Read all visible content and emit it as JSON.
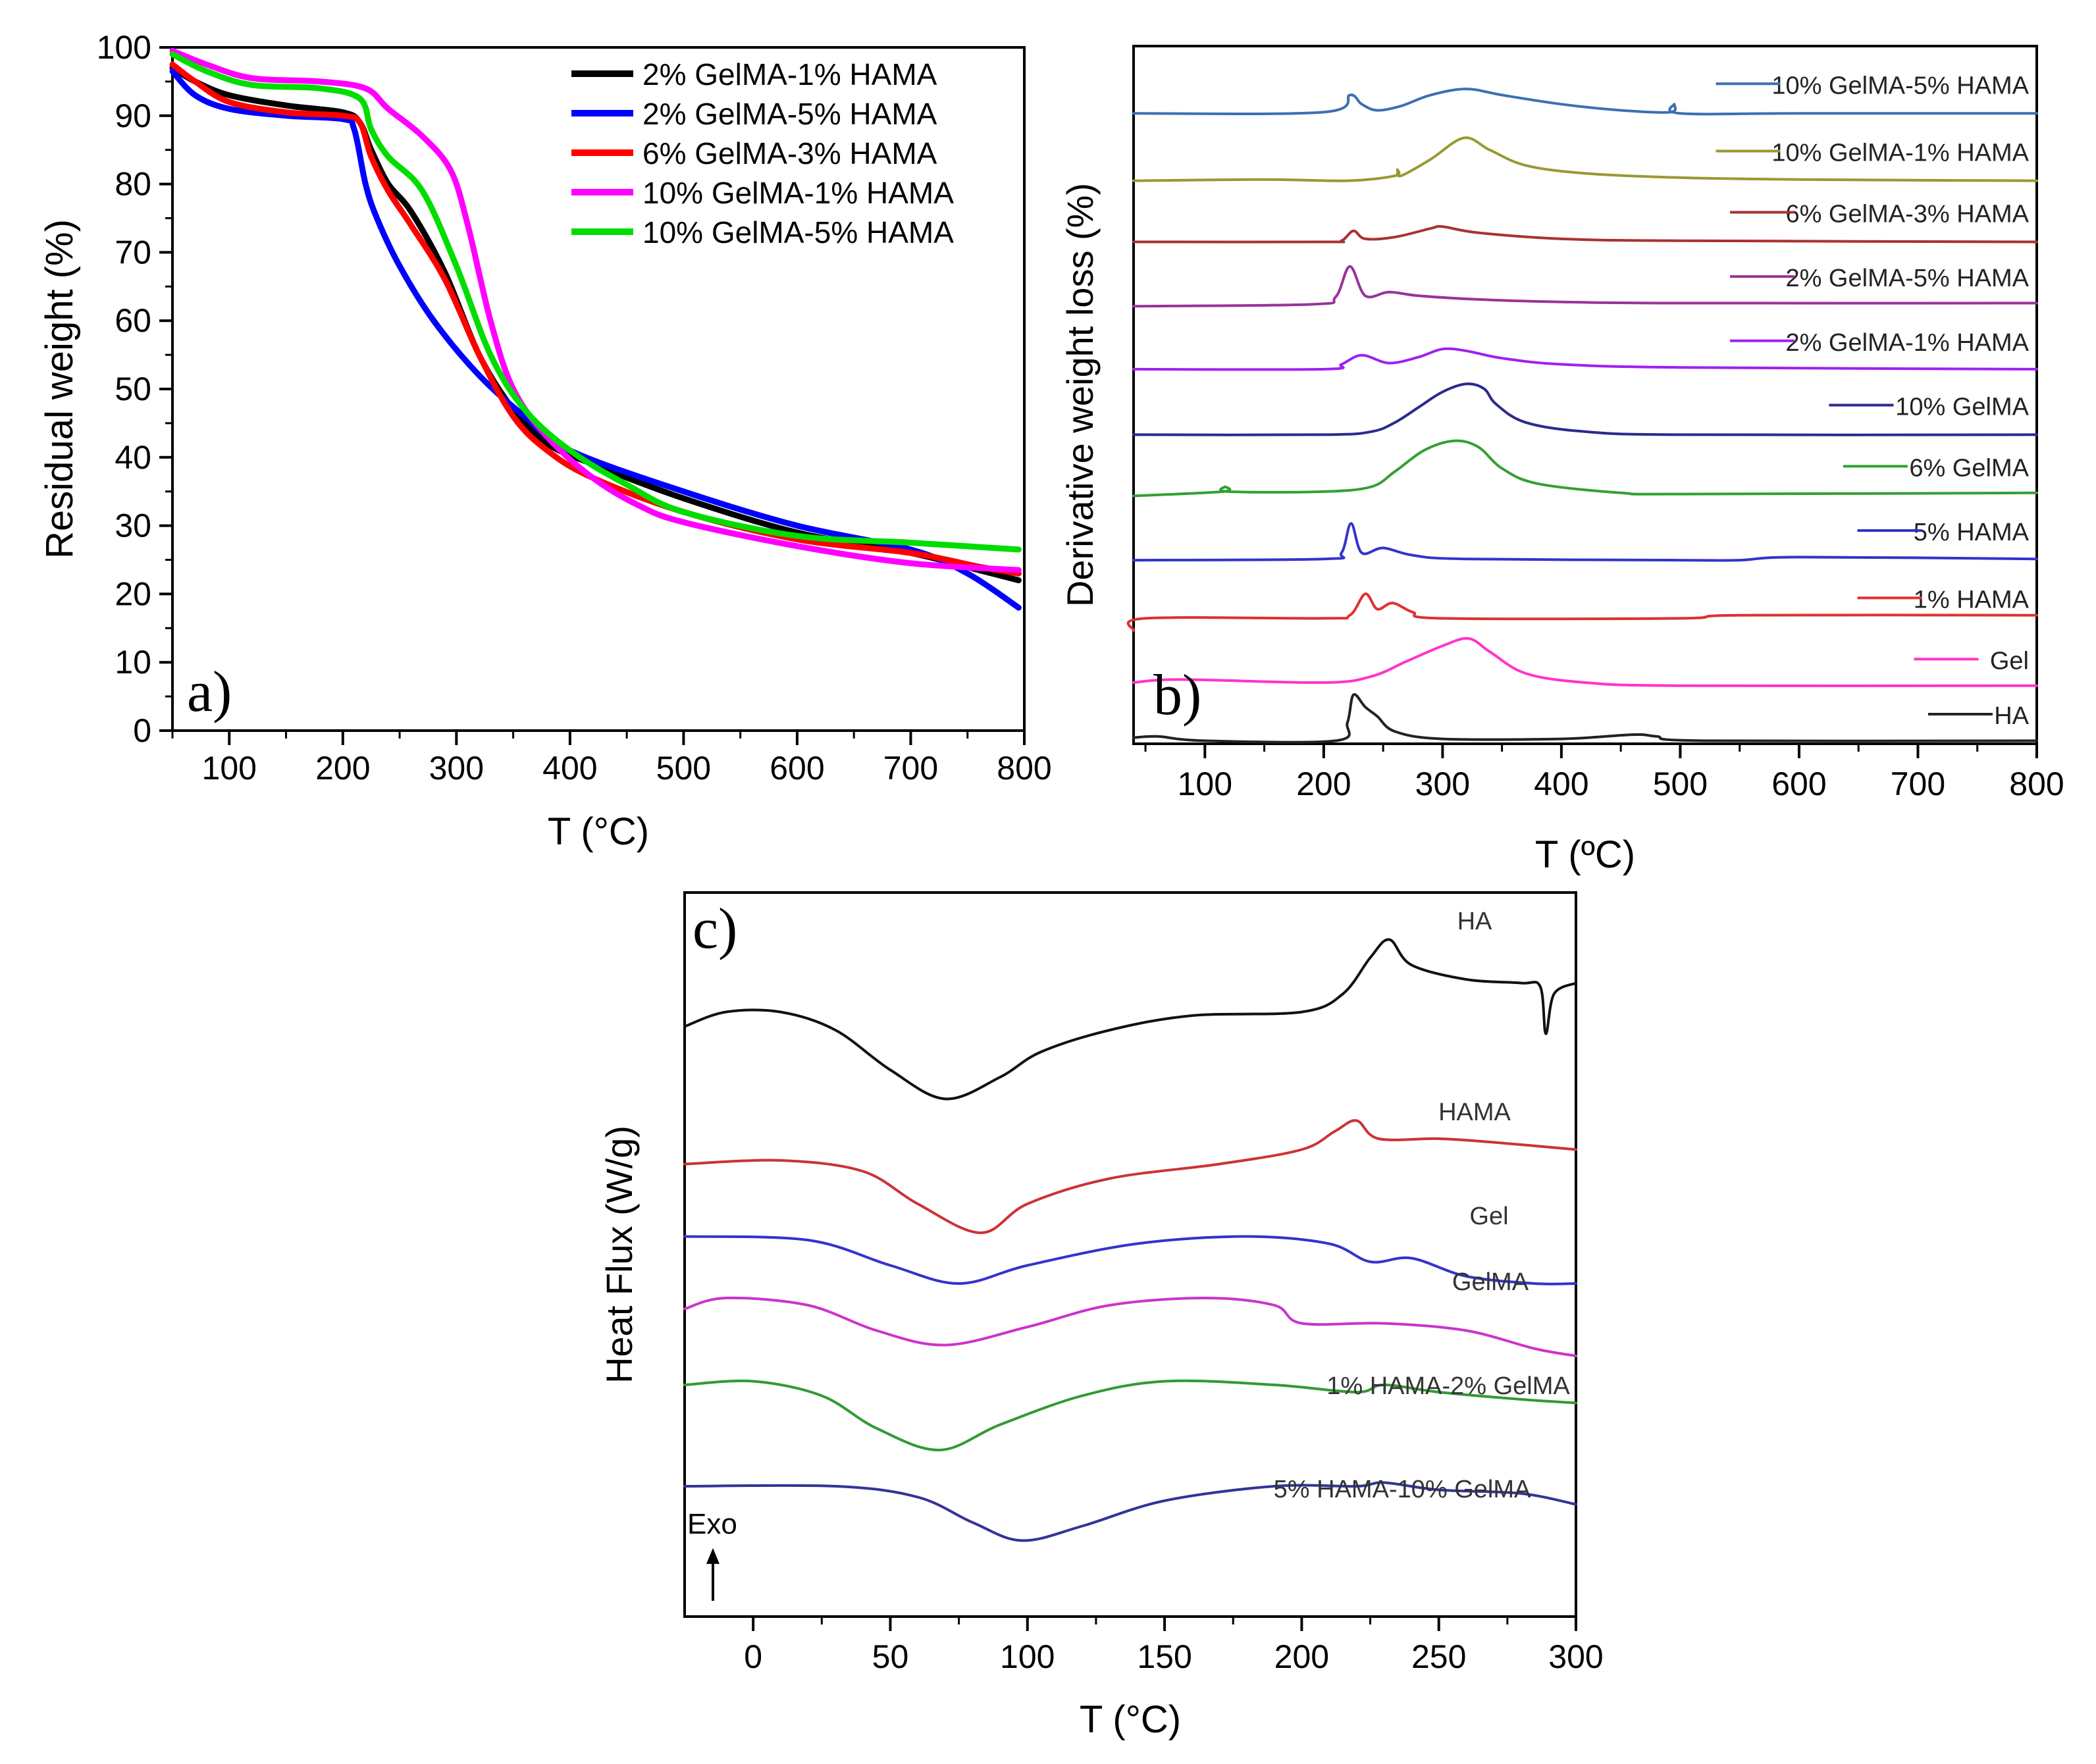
{
  "figure_panels": [
    "a)",
    "b)",
    "c)"
  ],
  "chart_data": [
    {
      "panel": "a)",
      "type": "line",
      "title": "",
      "xlabel": "T (°C)",
      "ylabel": "Residual weight (%)",
      "xlim": [
        50,
        800
      ],
      "ylim": [
        0,
        100
      ],
      "x_ticks": [
        100,
        200,
        300,
        400,
        500,
        600,
        700,
        800
      ],
      "x_tick_labels": [
        "100",
        "200",
        "300",
        "400",
        "500",
        "600",
        "700",
        "800"
      ],
      "y_ticks": [
        0,
        10,
        20,
        30,
        40,
        50,
        60,
        70,
        80,
        90,
        100
      ],
      "y_tick_labels": [
        "0",
        "10",
        "20",
        "30",
        "40",
        "50",
        "60",
        "70",
        "80",
        "90",
        "100"
      ],
      "grid": false,
      "legend_position": "top-right",
      "series": [
        {
          "name": "2% GelMA-1% HAMA",
          "color": "#000000",
          "x": [
            50,
            70,
            100,
            150,
            200,
            215,
            225,
            240,
            260,
            290,
            320,
            350,
            380,
            420,
            500,
            600,
            700,
            760,
            795
          ],
          "y": [
            97,
            95,
            93,
            91.5,
            90.5,
            89,
            85,
            80,
            76,
            67,
            55,
            47,
            42,
            39,
            34,
            29,
            26,
            23.5,
            22
          ]
        },
        {
          "name": "2% GelMA-5% HAMA",
          "color": "#0000ff",
          "x": [
            50,
            70,
            100,
            150,
            200,
            210,
            220,
            230,
            250,
            280,
            320,
            360,
            400,
            500,
            600,
            700,
            750,
            795
          ],
          "y": [
            96.5,
            93,
            91,
            90,
            89.5,
            88,
            80,
            75,
            68,
            60,
            52,
            46,
            41,
            35,
            30,
            26.5,
            23,
            18
          ]
        },
        {
          "name": "6% GelMA-3% HAMA",
          "color": "#ff0000",
          "x": [
            50,
            70,
            100,
            150,
            200,
            215,
            225,
            240,
            260,
            290,
            320,
            350,
            380,
            420,
            500,
            600,
            700,
            760,
            795
          ],
          "y": [
            97.5,
            95,
            92,
            90.5,
            90,
            89,
            84,
            79,
            74,
            66,
            55,
            46,
            41,
            37,
            32,
            28,
            26,
            24,
            23
          ]
        },
        {
          "name": "10% GelMA-1% HAMA",
          "color": "#ff00ff",
          "x": [
            50,
            80,
            120,
            180,
            220,
            240,
            270,
            295,
            310,
            330,
            350,
            380,
            420,
            460,
            500,
            600,
            700,
            795
          ],
          "y": [
            99.5,
            97.5,
            95.5,
            95,
            94,
            91,
            87,
            82,
            74,
            60,
            50,
            43,
            37,
            33,
            30.5,
            27,
            24.5,
            23.5
          ]
        },
        {
          "name": "10% GelMA-5% HAMA",
          "color": "#00dd00",
          "x": [
            50,
            80,
            120,
            180,
            215,
            225,
            240,
            270,
            300,
            330,
            360,
            400,
            450,
            500,
            600,
            700,
            795
          ],
          "y": [
            99,
            96.5,
            94.5,
            94,
            92.5,
            88,
            84,
            79,
            68,
            55,
            47,
            41,
            36,
            32,
            28.5,
            27.5,
            26.5
          ]
        }
      ]
    },
    {
      "panel": "b)",
      "type": "line",
      "title": "",
      "xlabel": "T (ºC)",
      "ylabel": "Derivative weight loss (%)",
      "xlim": [
        40,
        800
      ],
      "x_ticks": [
        100,
        200,
        300,
        400,
        500,
        600,
        700,
        800
      ],
      "x_tick_labels": [
        "100",
        "200",
        "300",
        "400",
        "500",
        "600",
        "700",
        "800"
      ],
      "ylim": [
        0,
        11.4
      ],
      "y_units": "stacked offset units (no y tick labels shown)",
      "grid": false,
      "legend_position": "right, one entry beside each trace",
      "series": [
        {
          "name": "10% GelMA-5% HAMA",
          "color": "#3d6fb3",
          "baseline": 10.3,
          "x": [
            40,
            200,
            222,
            232,
            245,
            265,
            290,
            320,
            350,
            400,
            450,
            492,
            495,
            500,
            600,
            800
          ],
          "y": [
            10.3,
            10.32,
            10.6,
            10.45,
            10.35,
            10.42,
            10.6,
            10.7,
            10.6,
            10.45,
            10.35,
            10.32,
            10.45,
            10.3,
            10.3,
            10.3
          ]
        },
        {
          "name": "10% GelMA-1% HAMA",
          "color": "#999933",
          "baseline": 9.2,
          "x": [
            40,
            150,
            220,
            260,
            262,
            265,
            290,
            318,
            340,
            370,
            420,
            500,
            600,
            800
          ],
          "y": [
            9.2,
            9.22,
            9.2,
            9.28,
            9.38,
            9.28,
            9.55,
            9.9,
            9.7,
            9.45,
            9.32,
            9.25,
            9.22,
            9.2
          ]
        },
        {
          "name": "6% GelMA-3% HAMA",
          "color": "#a83232",
          "baseline": 8.2,
          "x": [
            40,
            200,
            215,
            225,
            235,
            260,
            290,
            300,
            330,
            400,
            500,
            800
          ],
          "y": [
            8.2,
            8.2,
            8.22,
            8.38,
            8.25,
            8.28,
            8.42,
            8.45,
            8.35,
            8.25,
            8.22,
            8.2
          ]
        },
        {
          "name": "2% GelMA-5% HAMA",
          "color": "#993399",
          "baseline": 7.15,
          "x": [
            40,
            190,
            210,
            222,
            235,
            255,
            280,
            330,
            400,
            500,
            800
          ],
          "y": [
            7.15,
            7.18,
            7.3,
            7.8,
            7.32,
            7.38,
            7.32,
            7.26,
            7.22,
            7.2,
            7.2
          ]
        },
        {
          "name": "2% GelMA-1% HAMA",
          "color": "#a020f0",
          "baseline": 6.1,
          "x": [
            40,
            200,
            215,
            232,
            255,
            280,
            300,
            320,
            350,
            400,
            500,
            800
          ],
          "y": [
            6.12,
            6.12,
            6.2,
            6.35,
            6.22,
            6.32,
            6.45,
            6.42,
            6.3,
            6.2,
            6.15,
            6.12
          ]
        },
        {
          "name": "10% GelMA",
          "color": "#2a2a8c",
          "baseline": 5.05,
          "x": [
            40,
            200,
            240,
            260,
            280,
            300,
            320,
            335,
            345,
            370,
            420,
            500,
            800
          ],
          "y": [
            5.05,
            5.05,
            5.1,
            5.25,
            5.5,
            5.75,
            5.88,
            5.8,
            5.55,
            5.25,
            5.1,
            5.05,
            5.05
          ]
        },
        {
          "name": "6% GelMA",
          "color": "#33a033",
          "baseline": 4.05,
          "x": [
            40,
            115,
            117,
            120,
            200,
            240,
            260,
            285,
            310,
            330,
            350,
            380,
            450,
            500,
            800
          ],
          "y": [
            4.05,
            4.12,
            4.2,
            4.12,
            4.12,
            4.2,
            4.45,
            4.8,
            4.95,
            4.85,
            4.5,
            4.25,
            4.1,
            4.08,
            4.1
          ]
        },
        {
          "name": "5% HAMA",
          "color": "#3333cc",
          "baseline": 3.0,
          "x": [
            40,
            200,
            215,
            223,
            232,
            250,
            275,
            320,
            500,
            550,
            600,
            800
          ],
          "y": [
            3.0,
            3.02,
            3.12,
            3.6,
            3.12,
            3.2,
            3.08,
            3.02,
            3.0,
            3.0,
            3.05,
            3.02
          ]
        },
        {
          "name": "1% HAMA",
          "color": "#e03030",
          "baseline": 1.9,
          "x": [
            40,
            50,
            200,
            222,
            235,
            245,
            258,
            275,
            300,
            500,
            550,
            800
          ],
          "y": [
            1.85,
            2.05,
            2.05,
            2.1,
            2.45,
            2.2,
            2.3,
            2.15,
            2.05,
            2.05,
            2.1,
            2.1
          ]
        },
        {
          "name": "Gel",
          "color": "#ff33cc",
          "baseline": 0.9,
          "x": [
            40,
            80,
            200,
            240,
            270,
            300,
            322,
            340,
            370,
            420,
            500,
            800
          ],
          "y": [
            1.0,
            1.05,
            1.0,
            1.1,
            1.35,
            1.6,
            1.72,
            1.5,
            1.15,
            1.0,
            0.95,
            0.95
          ]
        },
        {
          "name": "HA",
          "color": "#222222",
          "baseline": 0.0,
          "x": [
            40,
            60,
            100,
            210,
            220,
            225,
            235,
            245,
            260,
            300,
            400,
            460,
            480,
            520,
            800
          ],
          "y": [
            0.1,
            0.12,
            0.05,
            0.05,
            0.35,
            0.8,
            0.6,
            0.45,
            0.2,
            0.08,
            0.08,
            0.15,
            0.12,
            0.05,
            0.05
          ]
        }
      ]
    },
    {
      "panel": "c)",
      "type": "line",
      "title": "",
      "xlabel": "T (°C)",
      "ylabel": "Heat Flux (W/g)",
      "xlim": [
        -25,
        300
      ],
      "x_ticks": [
        0,
        50,
        100,
        150,
        200,
        250,
        300
      ],
      "x_tick_labels": [
        "0",
        "50",
        "100",
        "150",
        "200",
        "250",
        "300"
      ],
      "ylim": [
        0,
        10
      ],
      "y_units": "stacked offset units (no y tick labels shown)",
      "grid": false,
      "annotation": "Exo",
      "legend_position": "right, one label above each trace",
      "series": [
        {
          "name": "HA",
          "color": "#111111",
          "x": [
            -25,
            -10,
            10,
            30,
            50,
            70,
            90,
            105,
            130,
            160,
            200,
            215,
            225,
            232,
            240,
            260,
            280,
            287,
            289,
            292,
            300
          ],
          "y": [
            8.15,
            8.35,
            8.35,
            8.1,
            7.55,
            7.15,
            7.45,
            7.8,
            8.1,
            8.3,
            8.35,
            8.6,
            9.1,
            9.35,
            9.0,
            8.8,
            8.75,
            8.7,
            8.05,
            8.6,
            8.75
          ]
        },
        {
          "name": "HAMA",
          "color": "#cc3333",
          "x": [
            -25,
            10,
            40,
            60,
            83,
            100,
            130,
            170,
            200,
            212,
            220,
            228,
            250,
            270,
            300
          ],
          "y": [
            6.25,
            6.3,
            6.15,
            5.7,
            5.3,
            5.7,
            6.05,
            6.25,
            6.45,
            6.7,
            6.85,
            6.6,
            6.6,
            6.55,
            6.45
          ]
        },
        {
          "name": "Gel",
          "color": "#3333cc",
          "x": [
            -25,
            20,
            50,
            75,
            100,
            140,
            180,
            210,
            225,
            240,
            260,
            285,
            300
          ],
          "y": [
            5.25,
            5.2,
            4.85,
            4.6,
            4.85,
            5.15,
            5.25,
            5.15,
            4.9,
            4.95,
            4.7,
            4.6,
            4.6
          ]
        },
        {
          "name": "GelMA",
          "color": "#cc33cc",
          "x": [
            -25,
            -10,
            20,
            45,
            70,
            100,
            130,
            165,
            190,
            200,
            230,
            260,
            285,
            300
          ],
          "y": [
            4.25,
            4.4,
            4.3,
            3.95,
            3.75,
            4.0,
            4.3,
            4.4,
            4.3,
            4.05,
            4.05,
            3.95,
            3.7,
            3.6
          ]
        },
        {
          "name": "1% HAMA-2% GelMA",
          "color": "#339933",
          "x": [
            -25,
            0,
            25,
            45,
            68,
            90,
            120,
            150,
            190,
            220,
            230,
            250,
            280,
            300
          ],
          "y": [
            3.2,
            3.25,
            3.05,
            2.6,
            2.3,
            2.65,
            3.05,
            3.25,
            3.2,
            3.1,
            3.2,
            3.1,
            3.0,
            2.95
          ]
        },
        {
          "name": "5% HAMA-10% GelMA",
          "color": "#333399",
          "x": [
            -25,
            30,
            60,
            80,
            98,
            120,
            150,
            190,
            220,
            230,
            250,
            280,
            300
          ],
          "y": [
            1.8,
            1.8,
            1.65,
            1.3,
            1.05,
            1.25,
            1.6,
            1.8,
            1.8,
            1.85,
            1.75,
            1.7,
            1.55
          ]
        }
      ]
    }
  ]
}
